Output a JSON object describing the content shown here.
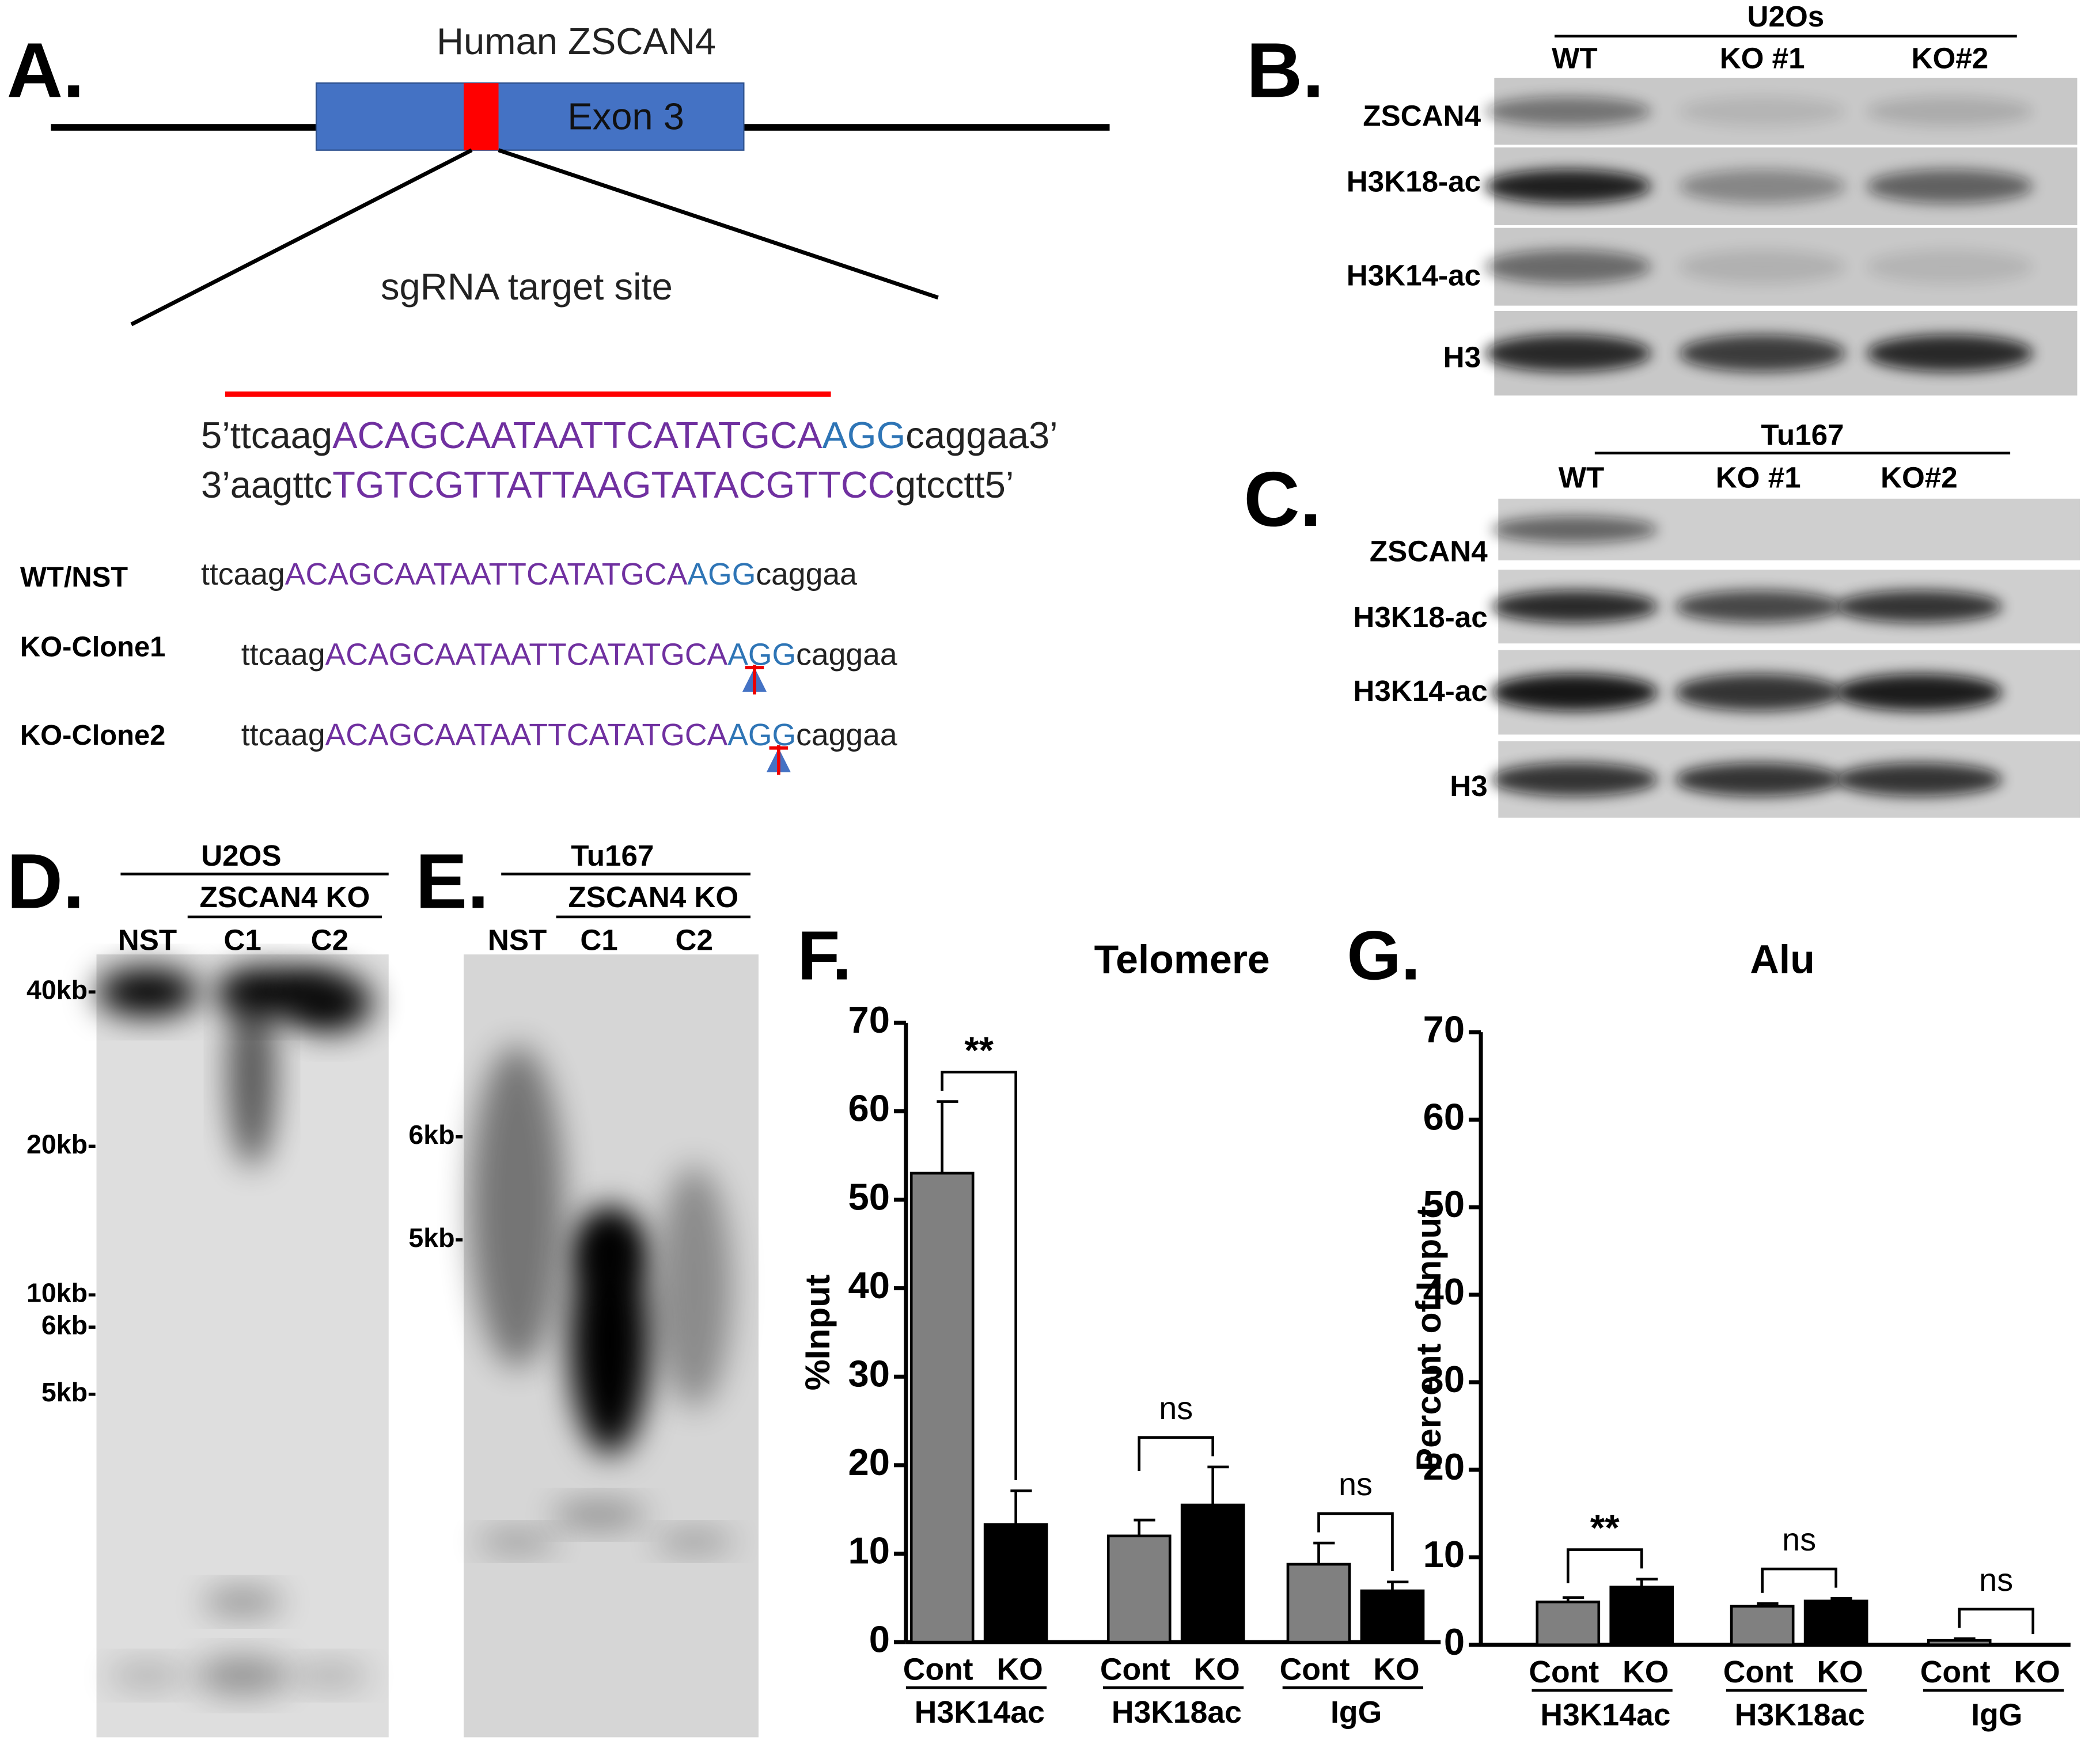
{
  "panel_a": {
    "label": "A.",
    "gene_title": "Human ZSCAN4",
    "exon_label": "Exon 3",
    "target_label": "sgRNA target site",
    "sense": {
      "prefix": "5’ttcaag",
      "target": "ACAGCAATAATTCATATGCA",
      "pam": "AGG",
      "suffix": "caggaa3’"
    },
    "antisense": {
      "prefix": "3’aagttc",
      "target": "TGTCGTTATTAAGTATACGTTCC",
      "suffix": "gtcctt5’"
    },
    "rows": [
      {
        "name": "WT/NST",
        "prefix": "ttcaag",
        "target": "ACAGCAATAATTCATATGCA",
        "pam": "AGG",
        "suffix": "caggaa"
      },
      {
        "name": "KO-Clone1",
        "prefix": "ttcaag",
        "target": "ACAGCAATAATTCATATGCA",
        "pam": "AGG",
        "suffix": "caggaa"
      },
      {
        "name": "KO-Clone2",
        "prefix": "ttcaag",
        "target": "ACAGCAATAATTCATATGCA",
        "pam": "AGG",
        "suffix": "caggaa"
      }
    ]
  },
  "panel_b": {
    "label": "B.",
    "cell_line": "U2Os",
    "lanes": [
      "WT",
      "KO #1",
      "KO#2"
    ],
    "antibodies": [
      "ZSCAN4",
      "H3K18-ac",
      "H3K14-ac",
      "H3"
    ]
  },
  "panel_c": {
    "label": "C.",
    "cell_line": "Tu167",
    "lanes": [
      "WT",
      "KO #1",
      "KO#2"
    ],
    "antibodies": [
      "ZSCAN4",
      "H3K18-ac",
      "H3K14-ac",
      "H3"
    ]
  },
  "panel_d": {
    "label": "D.",
    "cell_line": "U2OS",
    "group": "ZSCAN4 KO",
    "lanes": [
      "NST",
      "C1",
      "C2"
    ],
    "markers": [
      "40kb-",
      "20kb-",
      "10kb-",
      "6kb-",
      "5kb-"
    ]
  },
  "panel_e": {
    "label": "E.",
    "cell_line": "Tu167",
    "group": "ZSCAN4 KO",
    "lanes": [
      "NST",
      "C1",
      "C2"
    ],
    "markers": [
      "6kb-",
      "5kb-"
    ]
  },
  "chart_data": [
    {
      "type": "bar",
      "panel_label": "F.",
      "title": "Telomere",
      "ylabel": "%Input",
      "categories": [
        "H3K14ac",
        "H3K18ac",
        "IgG"
      ],
      "series": [
        {
          "name": "Cont",
          "color": "#808080",
          "values": [
            53,
            12,
            8.8
          ],
          "errors": [
            8.1,
            1.8,
            2.4
          ]
        },
        {
          "name": "KO",
          "color": "#000000",
          "values": [
            13.3,
            15.5,
            5.8
          ],
          "errors": [
            3.8,
            4.3,
            1.0
          ]
        }
      ],
      "significance": [
        "**",
        "ns",
        "ns"
      ],
      "ylim": [
        0,
        70
      ],
      "yticks": [
        0,
        10,
        20,
        30,
        40,
        50,
        60,
        70
      ]
    },
    {
      "type": "bar",
      "panel_label": "G.",
      "title": "Alu",
      "ylabel": "Percent of Input",
      "categories": [
        "H3K14ac",
        "H3K18ac",
        "IgG"
      ],
      "series": [
        {
          "name": "Cont",
          "color": "#808080",
          "values": [
            4.9,
            4.4,
            0.5
          ],
          "errors": [
            0.5,
            0.3,
            0.2
          ]
        },
        {
          "name": "KO",
          "color": "#000000",
          "values": [
            6.6,
            5.0,
            0
          ],
          "errors": [
            0.9,
            0.3,
            0
          ]
        }
      ],
      "significance": [
        "**",
        "ns",
        "ns"
      ],
      "ylim": [
        0,
        70
      ],
      "yticks": [
        0,
        10,
        20,
        30,
        40,
        50,
        60,
        70
      ]
    }
  ]
}
